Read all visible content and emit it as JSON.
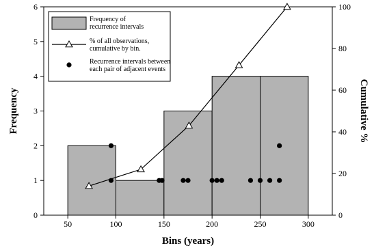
{
  "chart_data": {
    "type": "bar",
    "xlabel": "Bins (years)",
    "ylabel": "Frequency",
    "y2label": "Cumulative %",
    "xlim": [
      25,
      325
    ],
    "ylim": [
      0,
      6
    ],
    "y2lim": [
      0,
      100
    ],
    "xticks": [
      "50",
      "100",
      "150",
      "200",
      "250",
      "300"
    ],
    "xtick_values": [
      50,
      100,
      150,
      200,
      250,
      300
    ],
    "yticks": [
      "0",
      "1",
      "2",
      "3",
      "4",
      "5",
      "6"
    ],
    "ytick_values": [
      0,
      1,
      2,
      3,
      4,
      5,
      6
    ],
    "y2ticks": [
      "0",
      "20",
      "40",
      "60",
      "80",
      "100"
    ],
    "y2tick_values": [
      0,
      20,
      40,
      60,
      80,
      100
    ],
    "grid": false,
    "legend_position": "top-left",
    "legend": [
      {
        "kind": "bar",
        "line1": "Frequency of",
        "line2": "recurrence intervals"
      },
      {
        "kind": "line",
        "line1": "% of all observations,",
        "line2": "cumulative by bin."
      },
      {
        "kind": "dot",
        "line1": "Recurrence intervals between",
        "line2": "each pair of adjacent events"
      }
    ],
    "bars": [
      {
        "x0": 50,
        "x1": 100,
        "value": 2
      },
      {
        "x0": 100,
        "x1": 150,
        "value": 1
      },
      {
        "x0": 150,
        "x1": 200,
        "value": 3
      },
      {
        "x0": 200,
        "x1": 250,
        "value": 4
      },
      {
        "x0": 250,
        "x1": 300,
        "value": 4
      }
    ],
    "cumulative": {
      "x": [
        72,
        126,
        176,
        228,
        278
      ],
      "y": [
        14,
        22,
        43,
        72,
        100
      ]
    },
    "intervals": {
      "x": [
        95,
        95,
        145,
        148,
        170,
        175,
        200,
        205,
        210,
        240,
        250,
        260,
        270,
        270
      ],
      "y": [
        1,
        2,
        1,
        1,
        1,
        1,
        1,
        1,
        1,
        1,
        1,
        1,
        1,
        2
      ]
    }
  },
  "colors": {
    "bar_fill": "#b3b3b3",
    "bar_stroke": "#000000",
    "line": "#000000",
    "marker_fill": "#ffffff",
    "dot": "#000000"
  }
}
